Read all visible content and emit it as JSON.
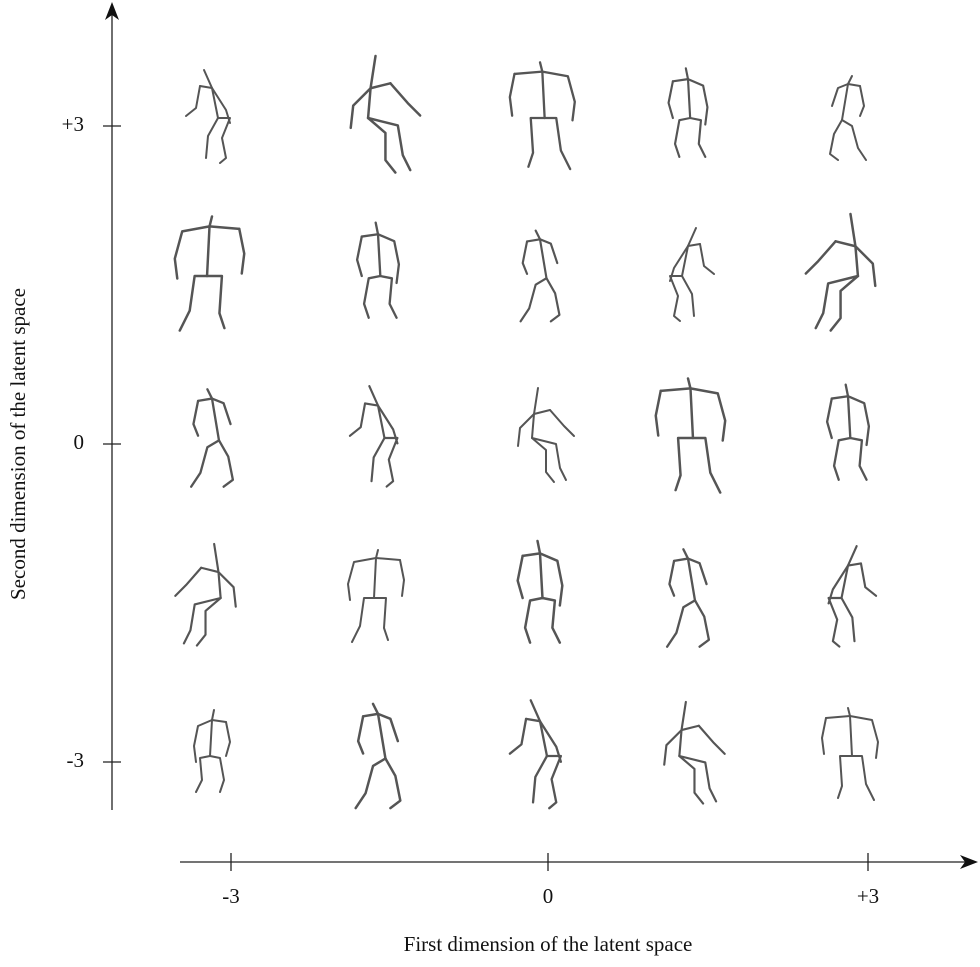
{
  "x_axis": {
    "title": "First dimension of the latent space",
    "ticks": [
      "-3",
      "0",
      "+3"
    ]
  },
  "y_axis": {
    "title": "Second dimension of the latent space",
    "ticks": [
      "+3",
      "0",
      "-3"
    ]
  }
}
